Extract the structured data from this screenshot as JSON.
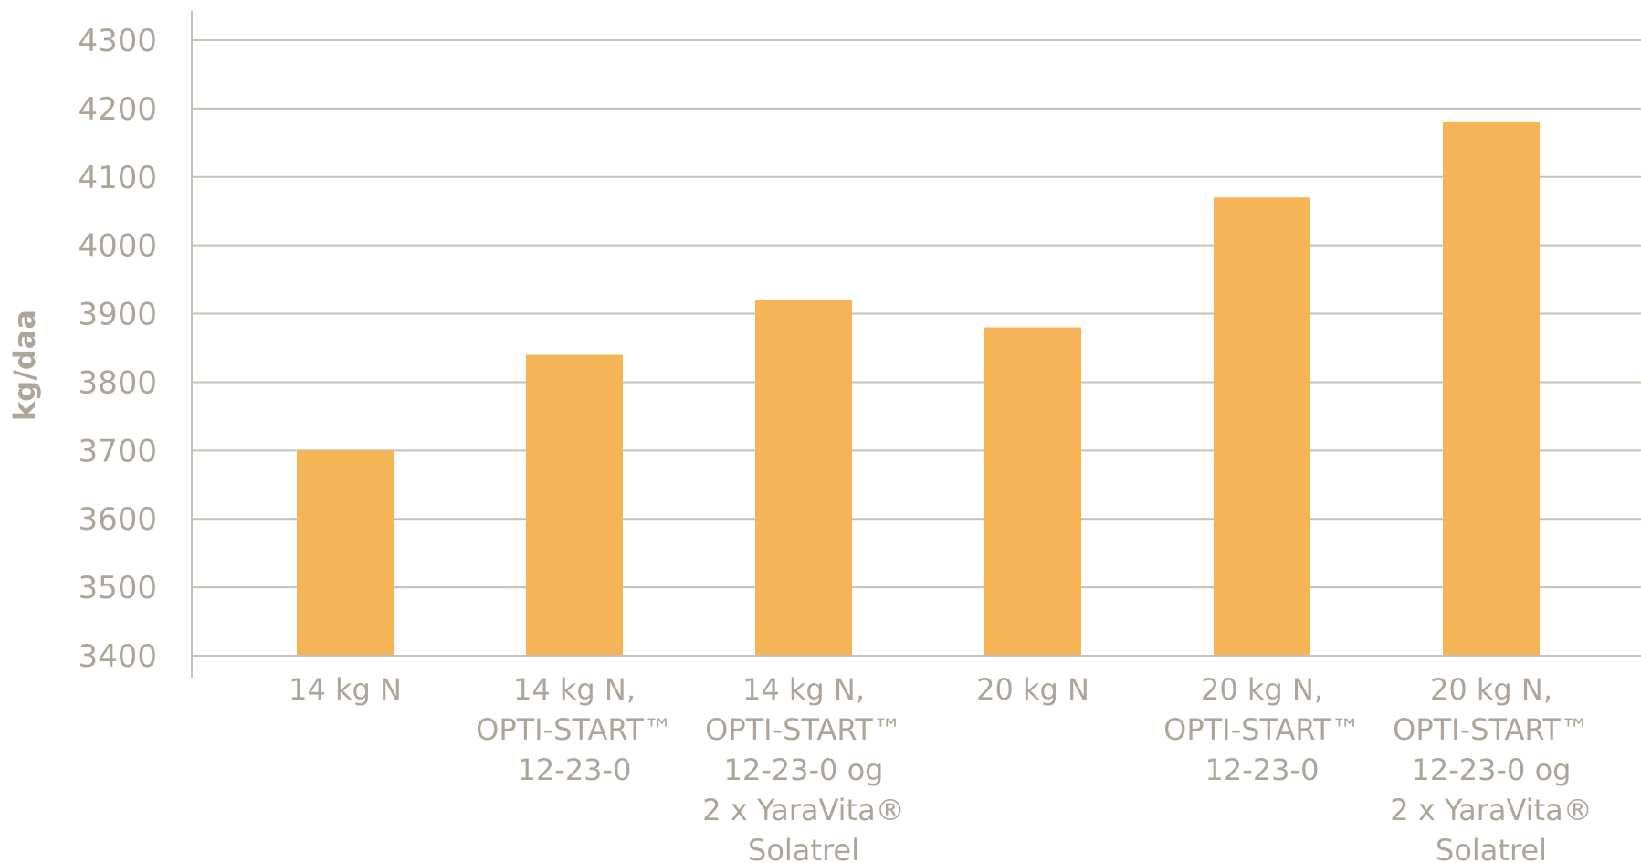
{
  "chart_data": {
    "type": "bar",
    "title": "",
    "xlabel": "",
    "ylabel": "kg/daa",
    "ylim": [
      3400,
      4300
    ],
    "yticks": [
      3400,
      3500,
      3600,
      3700,
      3800,
      3900,
      4000,
      4100,
      4200,
      4300
    ],
    "grid": true,
    "categories": [
      [
        "14 kg N"
      ],
      [
        "14 kg N,",
        "OPTI-START™",
        "12-23-0"
      ],
      [
        "14 kg N,",
        "OPTI-START™",
        "12-23-0 og",
        "2 x YaraVita®",
        "Solatrel"
      ],
      [
        "20 kg N"
      ],
      [
        "20 kg N,",
        "OPTI-START™",
        "12-23-0"
      ],
      [
        "20 kg N,",
        "OPTI-START™",
        "12-23-0 og",
        "2 x YaraVita®",
        "Solatrel"
      ]
    ],
    "values": [
      3700,
      3840,
      3920,
      3880,
      4070,
      4180
    ],
    "colors": {
      "bar": "#f5b556",
      "grid": "#c8bfb5",
      "axis": "#c8bfb5",
      "text": "#aea59a"
    }
  }
}
